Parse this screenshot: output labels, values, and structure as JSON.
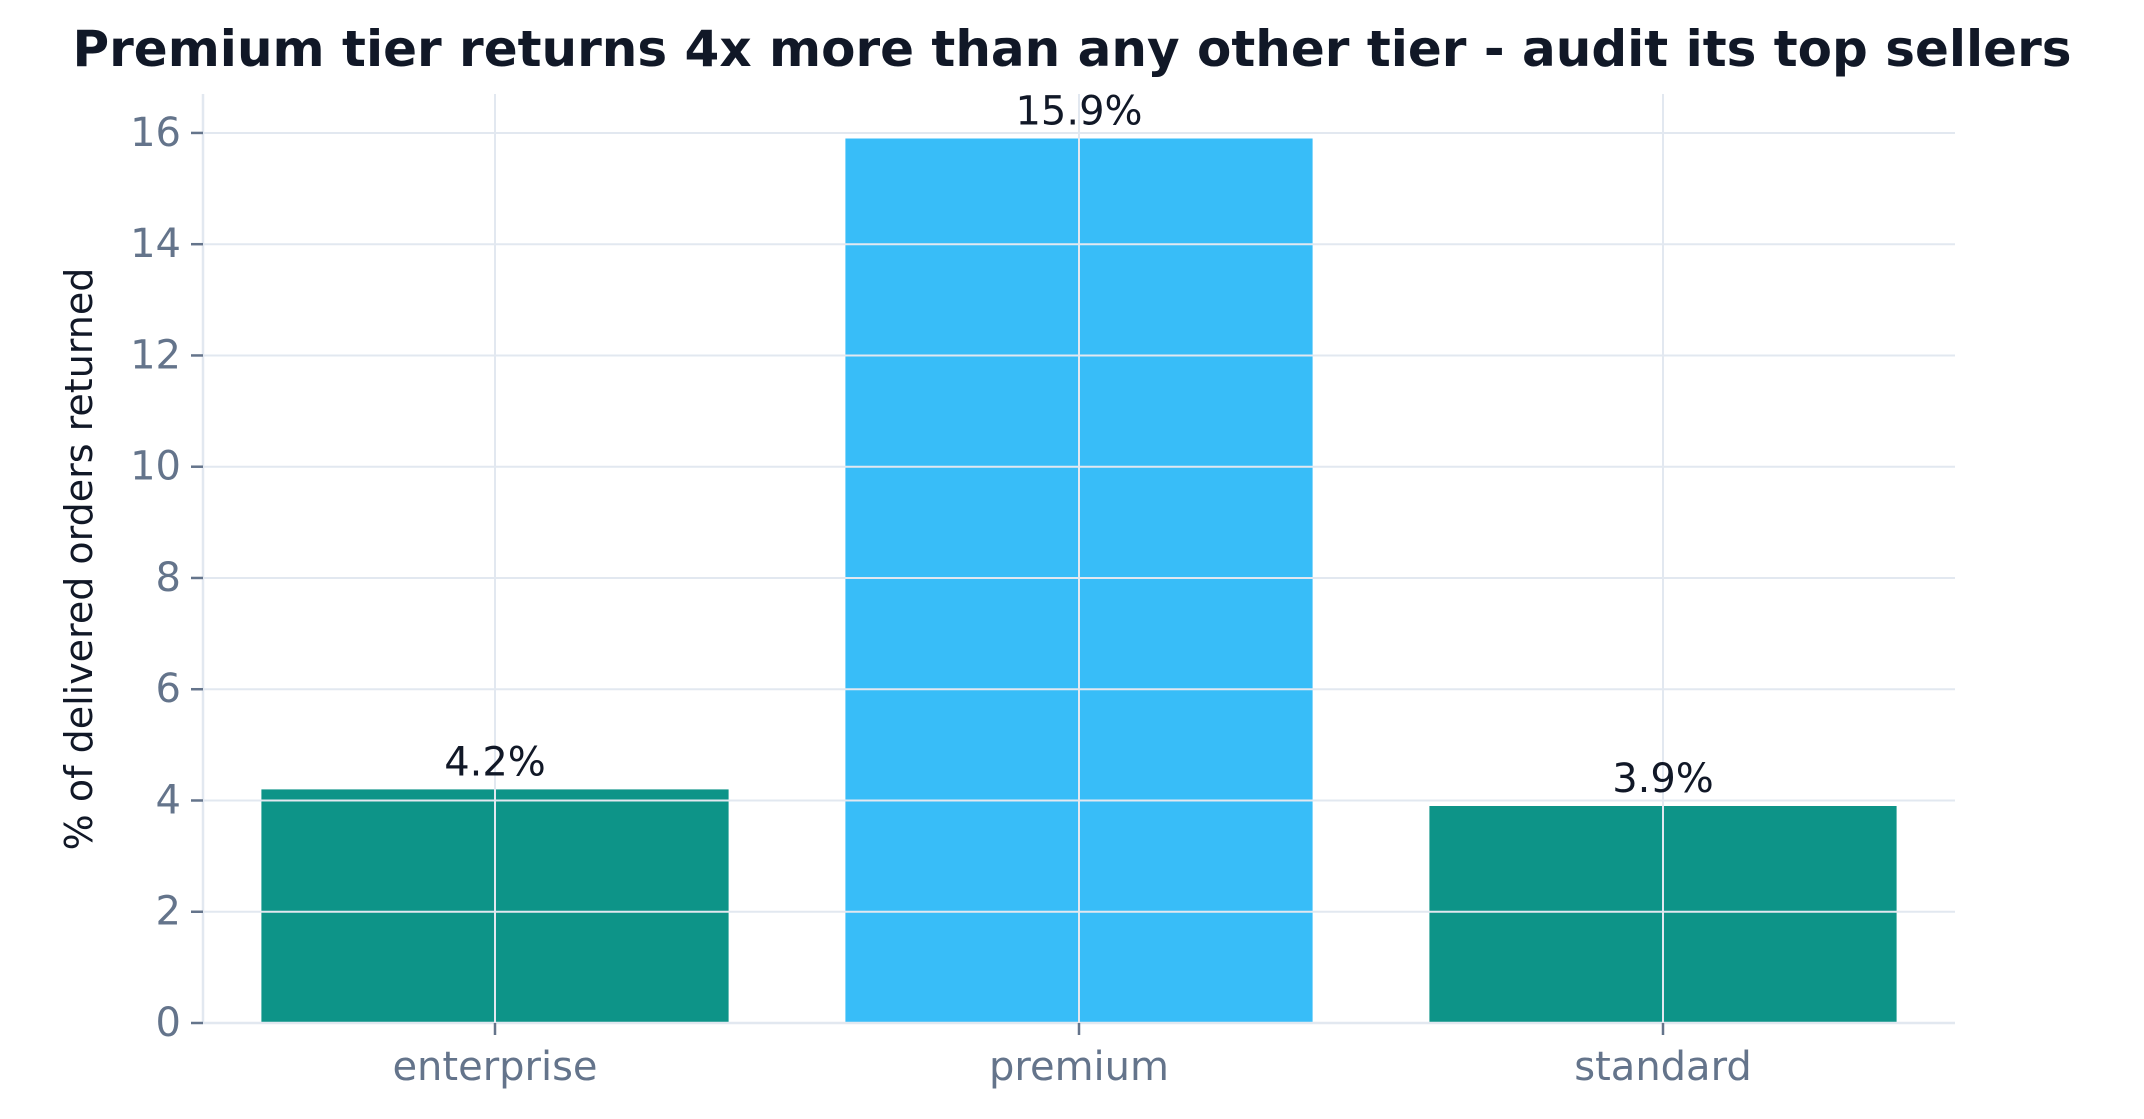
{
  "chart_data": {
    "type": "bar",
    "title": "Premium tier returns 4x more than any other tier - audit its top sellers",
    "xlabel": "",
    "ylabel": "% of delivered orders returned",
    "categories": [
      "enterprise",
      "premium",
      "standard"
    ],
    "values": [
      4.2,
      15.9,
      3.9
    ],
    "data_labels": [
      "4.2%",
      "15.9%",
      "3.9%"
    ],
    "bar_colors": [
      "#0d9488",
      "#38bdf8",
      "#0d9488"
    ],
    "ylim": [
      0,
      16.7
    ],
    "yticks": [
      0,
      2,
      4,
      6,
      8,
      10,
      12,
      14,
      16
    ],
    "grid": true,
    "legend": "none"
  },
  "colors": {
    "grid": "#e2e8f0",
    "axis": "#e2e8f0",
    "tick_text": "#64748b",
    "title_text": "#111827"
  }
}
